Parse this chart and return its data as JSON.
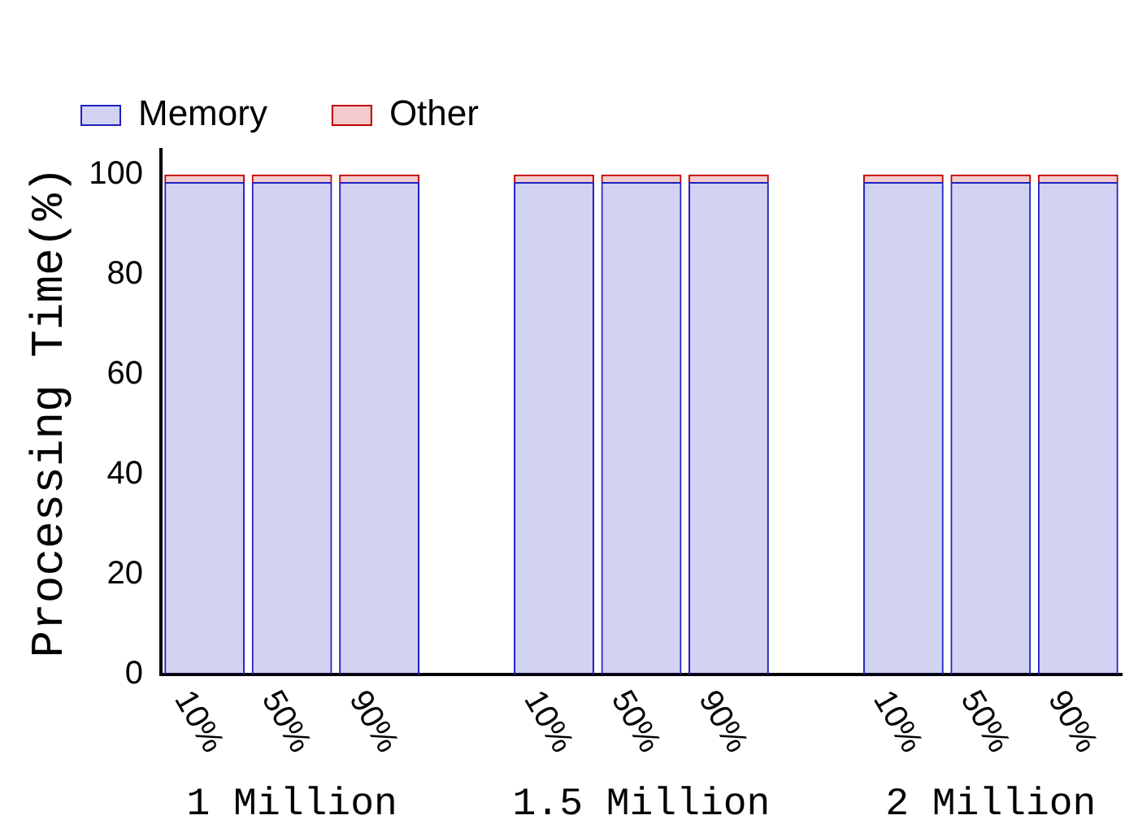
{
  "chart_data": {
    "type": "bar",
    "stacked": true,
    "ylabel": "Processing Time(%)",
    "categories": [
      "10%",
      "50%",
      "90%",
      null,
      "10%",
      "50%",
      "90%",
      null,
      "10%",
      "50%",
      "90%"
    ],
    "series": [
      {
        "name": "Memory",
        "color": "#2020c0",
        "values": [
          98.5,
          98.5,
          98.5,
          null,
          98.5,
          98.5,
          98.5,
          null,
          98.5,
          98.5,
          98.5
        ]
      },
      {
        "name": "Other",
        "color": "#c00000",
        "values": [
          1.5,
          1.5,
          1.5,
          null,
          1.5,
          1.5,
          1.5,
          null,
          1.5,
          1.5,
          1.5
        ]
      }
    ],
    "ylim": [
      0,
      105
    ],
    "yticks": [
      0,
      20,
      40,
      60,
      80,
      100
    ],
    "annotations": [
      "1 Million",
      "1.5 Million",
      "2 Million"
    ],
    "grid": false,
    "legend": "top left"
  }
}
